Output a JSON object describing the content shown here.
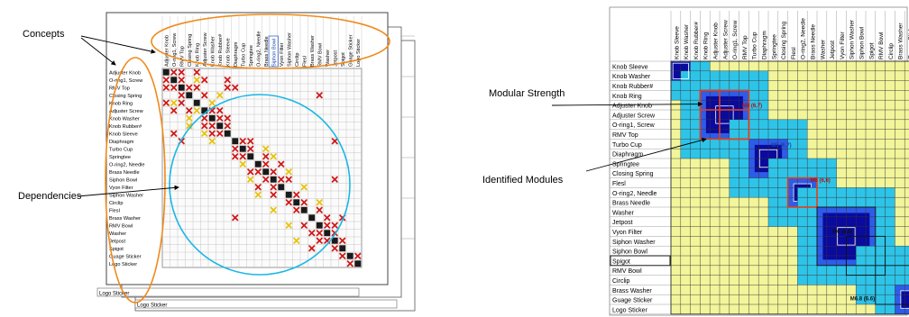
{
  "left_panel": {
    "callout_concepts": "Concepts",
    "callout_dependencies": "Dependencies",
    "components": [
      "Adjuster Knob",
      "O-ring1, Screw",
      "RMV Top",
      "Closing Spring",
      "Knob Ring",
      "Adjuster Screw",
      "Knob Washer",
      "Knob Rubber#",
      "Knob Sleeve",
      "Diaphragm",
      "Turbo Cup",
      "Springtee",
      "O-ring2, Needle",
      "Brass Needle",
      "Siphon Bowl",
      "Vyon Filter",
      "Siphon Washer",
      "Circlip",
      "Flesl",
      "Brass Washer",
      "RMV Bowl",
      "Washer",
      "Jetpost",
      "Spigot",
      "Guage Sticker",
      "Logo Sticker"
    ],
    "back_sheet_labels": [
      "Logo Sticker",
      "Logo Sticker"
    ],
    "highlighted_column": "Siphon Bowl",
    "dependencies": {
      "dark": [
        [
          0,
          0
        ],
        [
          1,
          1
        ],
        [
          2,
          2
        ],
        [
          3,
          3
        ],
        [
          4,
          4
        ],
        [
          5,
          5
        ],
        [
          6,
          6
        ],
        [
          7,
          7
        ],
        [
          8,
          8
        ],
        [
          9,
          9
        ],
        [
          10,
          10
        ],
        [
          11,
          11
        ],
        [
          12,
          12
        ],
        [
          13,
          13
        ],
        [
          14,
          14
        ],
        [
          15,
          15
        ],
        [
          16,
          16
        ],
        [
          17,
          17
        ],
        [
          18,
          18
        ],
        [
          19,
          19
        ],
        [
          20,
          20
        ],
        [
          21,
          21
        ],
        [
          22,
          22
        ],
        [
          23,
          23
        ],
        [
          24,
          24
        ],
        [
          25,
          25
        ]
      ],
      "red": [
        [
          0,
          1
        ],
        [
          0,
          2
        ],
        [
          0,
          4
        ],
        [
          1,
          0
        ],
        [
          1,
          2
        ],
        [
          1,
          5
        ],
        [
          1,
          8
        ],
        [
          2,
          0
        ],
        [
          2,
          1
        ],
        [
          2,
          3
        ],
        [
          2,
          4
        ],
        [
          2,
          8
        ],
        [
          2,
          9
        ],
        [
          3,
          2
        ],
        [
          3,
          5
        ],
        [
          4,
          0
        ],
        [
          4,
          2
        ],
        [
          5,
          1
        ],
        [
          5,
          3
        ],
        [
          5,
          6
        ],
        [
          5,
          7
        ],
        [
          6,
          5
        ],
        [
          6,
          7
        ],
        [
          6,
          8
        ],
        [
          7,
          5
        ],
        [
          7,
          6
        ],
        [
          7,
          8
        ],
        [
          8,
          1
        ],
        [
          8,
          6
        ],
        [
          8,
          7
        ],
        [
          9,
          2
        ],
        [
          9,
          10
        ],
        [
          9,
          11
        ],
        [
          10,
          9
        ],
        [
          10,
          11
        ],
        [
          11,
          9
        ],
        [
          11,
          10
        ],
        [
          11,
          13
        ],
        [
          12,
          13
        ],
        [
          12,
          15
        ],
        [
          13,
          11
        ],
        [
          13,
          12
        ],
        [
          13,
          14
        ],
        [
          14,
          13
        ],
        [
          14,
          15
        ],
        [
          14,
          16
        ],
        [
          15,
          12
        ],
        [
          15,
          14
        ],
        [
          16,
          14
        ],
        [
          16,
          17
        ],
        [
          17,
          16
        ],
        [
          17,
          18
        ],
        [
          18,
          17
        ],
        [
          18,
          20
        ],
        [
          19,
          21
        ],
        [
          19,
          23
        ],
        [
          20,
          18
        ],
        [
          20,
          21
        ],
        [
          20,
          22
        ],
        [
          21,
          19
        ],
        [
          21,
          20
        ],
        [
          21,
          22
        ],
        [
          22,
          20
        ],
        [
          22,
          21
        ],
        [
          22,
          23
        ],
        [
          23,
          19
        ],
        [
          23,
          22
        ],
        [
          24,
          23
        ],
        [
          24,
          25
        ],
        [
          25,
          24
        ],
        [
          3,
          20
        ],
        [
          9,
          22
        ],
        [
          14,
          22
        ],
        [
          19,
          9
        ]
      ],
      "yellow": [
        [
          1,
          4
        ],
        [
          4,
          1
        ],
        [
          4,
          6
        ],
        [
          6,
          3
        ],
        [
          3,
          7
        ],
        [
          5,
          4
        ],
        [
          8,
          5
        ],
        [
          7,
          3
        ],
        [
          9,
          6
        ],
        [
          12,
          10
        ],
        [
          10,
          13
        ],
        [
          13,
          16
        ],
        [
          16,
          12
        ],
        [
          15,
          18
        ],
        [
          18,
          14
        ],
        [
          17,
          20
        ],
        [
          20,
          16
        ],
        [
          11,
          14
        ],
        [
          14,
          11
        ],
        [
          22,
          17
        ]
      ]
    }
  },
  "right_panel": {
    "callout_modular_strength": "Modular Strength",
    "callout_identified_modules": "Identified Modules",
    "components": [
      "Knob Sleeve",
      "Knob Washer",
      "Knob Rubber#",
      "Knob Ring",
      "Adjuster Knob",
      "Adjuster Screw",
      "O-ring1, Screw",
      "RMV Top",
      "Turbo Cup",
      "Diaphragm",
      "Springtee",
      "Closing Spring",
      "Flesl",
      "O-ring2, Needle",
      "Brass Needle",
      "Washer",
      "Jetpost",
      "Vyon Filter",
      "Siphon Washer",
      "Siphon Bowl",
      "Spigot",
      "RMV Bowl",
      "Circlip",
      "Brass Washer",
      "Guage Sticker",
      "Logo Sticker"
    ],
    "module_labels": [
      "M8 (6,7)",
      "M5 (6,7)",
      "M6 (6,6)",
      "M6 (6,6)",
      "M6.8 (6.6)"
    ],
    "modules": [
      {
        "start": 0,
        "end": 1,
        "strength": "high"
      },
      {
        "start": 3,
        "end": 7,
        "strength": "high"
      },
      {
        "start": 8,
        "end": 11,
        "strength": "high"
      },
      {
        "start": 12,
        "end": 14,
        "strength": "medium"
      },
      {
        "start": 15,
        "end": 20,
        "strength": "high"
      },
      {
        "start": 21,
        "end": 22,
        "strength": "high"
      },
      {
        "start": 23,
        "end": 25,
        "strength": "low"
      }
    ],
    "colors": {
      "core": "#0a0a9e",
      "inner": "#2e5ce6",
      "mid": "#2ec4e8",
      "green": "#5de07a",
      "yellow": "#f2f59a",
      "module_border": "#e0401a"
    }
  }
}
